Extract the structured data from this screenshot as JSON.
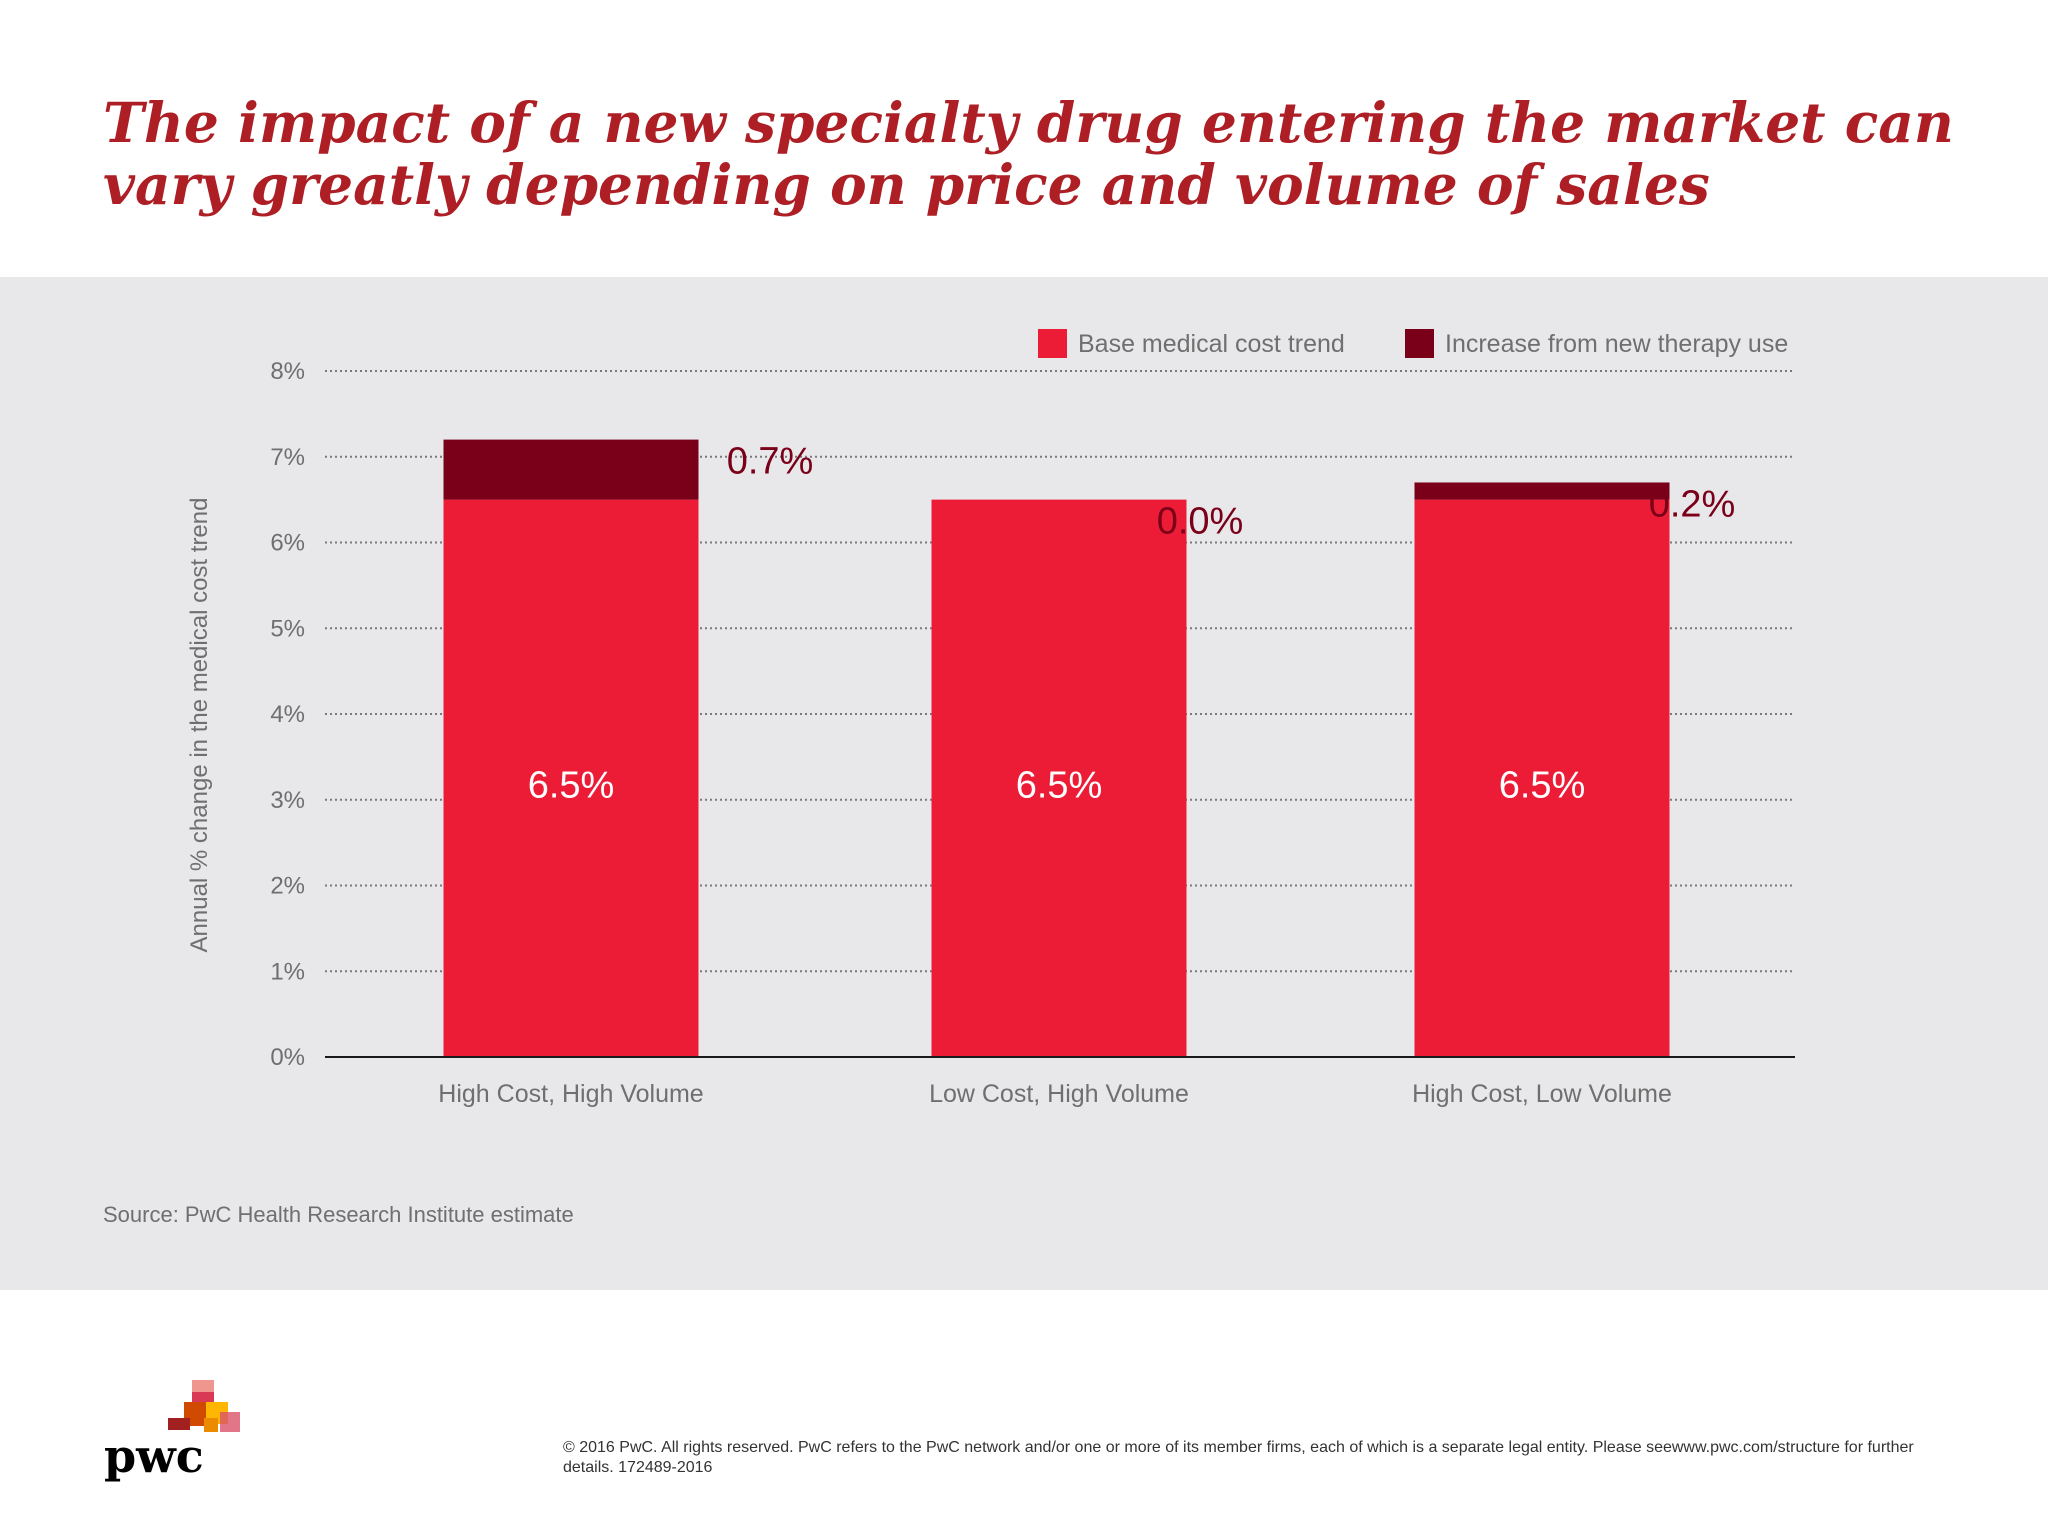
{
  "title": "The impact of a new specialty drug entering the market can vary greatly depending on price and volume of sales",
  "source": "Source: PwC Health Research Institute estimate",
  "copyright": "© 2016 PwC. All rights reserved. PwC refers to the PwC network and/or one or more of its member firms, each of which is a separate legal entity. Please seewww.pwc.com/structure for further details. 172489-2016",
  "logo_text": "pwc",
  "colors": {
    "base": "#ed1c36",
    "increase": "#7a0019",
    "title": "#ad1f24",
    "panel": "#e8e7e9"
  },
  "chart_data": {
    "type": "bar",
    "stacked": true,
    "categories": [
      "High Cost, High Volume",
      "Low Cost, High Volume",
      "High Cost, Low Volume"
    ],
    "series": [
      {
        "name": "Base medical cost trend",
        "values": [
          6.5,
          6.5,
          6.5
        ],
        "labels": [
          "6.5%",
          "6.5%",
          "6.5%"
        ]
      },
      {
        "name": "Increase from new therapy use",
        "values": [
          0.7,
          0.0,
          0.2
        ],
        "labels": [
          "0.7%",
          "0.0%",
          "0.2%"
        ]
      }
    ],
    "yticks": [
      "0%",
      "1%",
      "2%",
      "3%",
      "4%",
      "5%",
      "6%",
      "7%",
      "8%"
    ],
    "ylim": [
      0,
      8
    ],
    "ylabel": "Annual % change in the medical cost trend",
    "xlabel": "",
    "grid": true,
    "legend_position": "top-right"
  }
}
